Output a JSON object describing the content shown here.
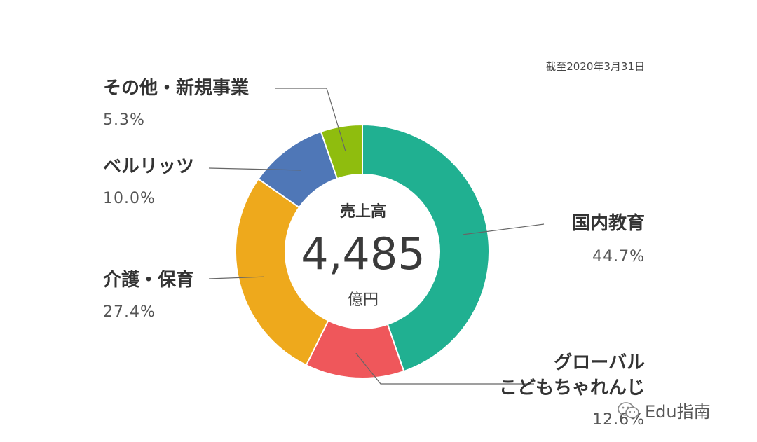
{
  "as_of": "截至2020年3月31日",
  "center": {
    "title": "売上高",
    "value": "4,485",
    "unit": "億円"
  },
  "watermark": "Edu指南",
  "chart_data": {
    "type": "pie",
    "donut": true,
    "total_label": "売上高",
    "total_value": 4485,
    "total_unit": "億円",
    "note": "截至2020年3月31日",
    "slices": [
      {
        "label": "国内教育",
        "label_lines": [
          "国内教育"
        ],
        "value": 44.7,
        "value_text": "44.7%",
        "color": "#20b091"
      },
      {
        "label": "グローバルこどもちゃれんじ",
        "label_lines": [
          "グローバル",
          "こどもちゃれんじ"
        ],
        "value": 12.6,
        "value_text": "12.6%",
        "color": "#ef575b"
      },
      {
        "label": "介護・保育",
        "label_lines": [
          "介護・保育"
        ],
        "value": 27.4,
        "value_text": "27.4%",
        "color": "#eea91c"
      },
      {
        "label": "ベルリッツ",
        "label_lines": [
          "ベルリッツ"
        ],
        "value": 10.0,
        "value_text": "10.0%",
        "color": "#4f77b7"
      },
      {
        "label": "その他・新規事業",
        "label_lines": [
          "その他・新規事業"
        ],
        "value": 5.3,
        "value_text": "5.3%",
        "color": "#8fbd0e"
      }
    ]
  }
}
